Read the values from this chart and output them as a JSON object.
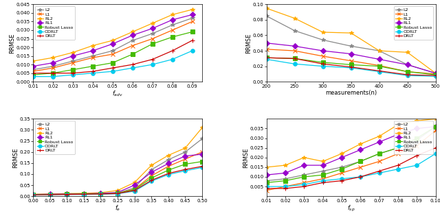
{
  "legend_labels": [
    "L2",
    "L1",
    "RL2",
    "RL1",
    "Robust Lasso",
    "ODRLT",
    "DRLT"
  ],
  "colors": [
    "#888888",
    "#ff6600",
    "#ffaa00",
    "#9900cc",
    "#44bb00",
    "#00ccee",
    "#cc0000"
  ],
  "markers": [
    "*",
    "x",
    "*",
    "D",
    "s",
    "o",
    "+"
  ],
  "plot1": {
    "xlabel": "$f_{adv}$",
    "ylabel": "RRMSE",
    "xlim": [
      0.01,
      0.095
    ],
    "ylim": [
      0,
      0.045
    ],
    "xticks": [
      0.01,
      0.02,
      0.03,
      0.04,
      0.05,
      0.06,
      0.07,
      0.08,
      0.09
    ],
    "yticks": [
      0,
      0.005,
      0.01,
      0.015,
      0.02,
      0.025,
      0.03,
      0.035,
      0.04,
      0.045
    ],
    "x": [
      0.01,
      0.02,
      0.03,
      0.04,
      0.05,
      0.06,
      0.07,
      0.08,
      0.09
    ],
    "L2": [
      0.007,
      0.009,
      0.012,
      0.015,
      0.018,
      0.024,
      0.028,
      0.033,
      0.037
    ],
    "L1": [
      0.006,
      0.008,
      0.011,
      0.014,
      0.016,
      0.021,
      0.025,
      0.03,
      0.035
    ],
    "RL2": [
      0.012,
      0.014,
      0.017,
      0.021,
      0.024,
      0.029,
      0.034,
      0.039,
      0.042
    ],
    "RL1": [
      0.009,
      0.011,
      0.015,
      0.018,
      0.022,
      0.027,
      0.031,
      0.036,
      0.039
    ],
    "Robust Lasso": [
      0.004,
      0.005,
      0.007,
      0.009,
      0.011,
      0.016,
      0.022,
      0.026,
      0.029
    ],
    "ODRLT": [
      0.003,
      0.003,
      0.004,
      0.005,
      0.006,
      0.008,
      0.01,
      0.013,
      0.018
    ],
    "DRLT": [
      0.005,
      0.005,
      0.005,
      0.006,
      0.008,
      0.01,
      0.013,
      0.018,
      0.024
    ]
  },
  "plot2": {
    "xlabel": "measurements(n)",
    "ylabel": "RRMSE",
    "xlim": [
      200,
      500
    ],
    "ylim": [
      0,
      0.1
    ],
    "xticks": [
      200,
      250,
      300,
      350,
      400,
      450,
      500
    ],
    "yticks": [
      0,
      0.02,
      0.04,
      0.06,
      0.08,
      0.1
    ],
    "x": [
      200,
      250,
      300,
      350,
      400,
      450,
      500
    ],
    "L2": [
      0.085,
      0.066,
      0.054,
      0.046,
      0.04,
      0.022,
      0.011
    ],
    "L1": [
      0.042,
      0.04,
      0.033,
      0.027,
      0.021,
      0.013,
      0.01
    ],
    "RL2": [
      0.095,
      0.082,
      0.064,
      0.063,
      0.04,
      0.038,
      0.011
    ],
    "RL1": [
      0.05,
      0.046,
      0.04,
      0.036,
      0.029,
      0.022,
      0.011
    ],
    "Robust Lasso": [
      0.031,
      0.03,
      0.025,
      0.022,
      0.02,
      0.013,
      0.009
    ],
    "ODRLT": [
      0.029,
      0.023,
      0.02,
      0.018,
      0.013,
      0.008,
      0.007
    ],
    "DRLT": [
      0.031,
      0.03,
      0.023,
      0.019,
      0.014,
      0.009,
      0.008
    ]
  },
  "plot3": {
    "xlabel": "$f_e$",
    "ylabel": "RRMSE",
    "xlim": [
      0,
      0.5
    ],
    "ylim": [
      0,
      0.35
    ],
    "xticks": [
      0,
      0.05,
      0.1,
      0.15,
      0.2,
      0.25,
      0.3,
      0.35,
      0.4,
      0.45,
      0.5
    ],
    "yticks": [
      0,
      0.05,
      0.1,
      0.15,
      0.2,
      0.25,
      0.3,
      0.35
    ],
    "x": [
      0,
      0.05,
      0.1,
      0.15,
      0.2,
      0.25,
      0.3,
      0.35,
      0.4,
      0.45,
      0.5
    ],
    "L2": [
      0.008,
      0.009,
      0.01,
      0.011,
      0.012,
      0.014,
      0.038,
      0.12,
      0.165,
      0.2,
      0.26
    ],
    "L1": [
      0.007,
      0.008,
      0.009,
      0.01,
      0.011,
      0.013,
      0.032,
      0.092,
      0.135,
      0.168,
      0.2
    ],
    "RL2": [
      0.009,
      0.01,
      0.012,
      0.013,
      0.016,
      0.026,
      0.062,
      0.14,
      0.185,
      0.218,
      0.31
    ],
    "RL1": [
      0.008,
      0.009,
      0.01,
      0.011,
      0.013,
      0.017,
      0.05,
      0.108,
      0.148,
      0.182,
      0.19
    ],
    "Robust Lasso": [
      0.007,
      0.008,
      0.009,
      0.01,
      0.011,
      0.013,
      0.03,
      0.082,
      0.118,
      0.145,
      0.157
    ],
    "ODRLT": [
      0.006,
      0.007,
      0.008,
      0.008,
      0.009,
      0.011,
      0.023,
      0.068,
      0.098,
      0.115,
      0.13
    ],
    "DRLT": [
      0.006,
      0.007,
      0.008,
      0.009,
      0.01,
      0.012,
      0.026,
      0.072,
      0.103,
      0.121,
      0.135
    ]
  },
  "plot4": {
    "xlabel": "$f_{sp}$",
    "ylabel": "RRMSE",
    "xlim": [
      0.01,
      0.1
    ],
    "ylim": [
      0,
      0.04
    ],
    "xticks": [
      0.01,
      0.02,
      0.03,
      0.04,
      0.05,
      0.06,
      0.07,
      0.08,
      0.09,
      0.1
    ],
    "yticks": [
      0.005,
      0.01,
      0.015,
      0.02,
      0.025,
      0.03,
      0.035
    ],
    "x": [
      0.01,
      0.02,
      0.03,
      0.04,
      0.05,
      0.06,
      0.07,
      0.08,
      0.09,
      0.1
    ],
    "L2": [
      0.008,
      0.009,
      0.011,
      0.013,
      0.015,
      0.018,
      0.022,
      0.025,
      0.029,
      0.036
    ],
    "L1": [
      0.003,
      0.005,
      0.007,
      0.009,
      0.012,
      0.015,
      0.018,
      0.022,
      0.026,
      0.034
    ],
    "RL2": [
      0.015,
      0.016,
      0.02,
      0.018,
      0.022,
      0.027,
      0.031,
      0.037,
      0.039,
      0.04
    ],
    "RL1": [
      0.011,
      0.012,
      0.016,
      0.016,
      0.02,
      0.024,
      0.028,
      0.032,
      0.035,
      0.036
    ],
    "Robust Lasso": [
      0.007,
      0.008,
      0.01,
      0.011,
      0.014,
      0.018,
      0.022,
      0.025,
      0.03,
      0.036
    ],
    "ODRLT": [
      0.005,
      0.005,
      0.006,
      0.008,
      0.009,
      0.01,
      0.012,
      0.014,
      0.016,
      0.022
    ],
    "DRLT": [
      0.004,
      0.004,
      0.005,
      0.007,
      0.008,
      0.01,
      0.013,
      0.016,
      0.021,
      0.025
    ]
  }
}
